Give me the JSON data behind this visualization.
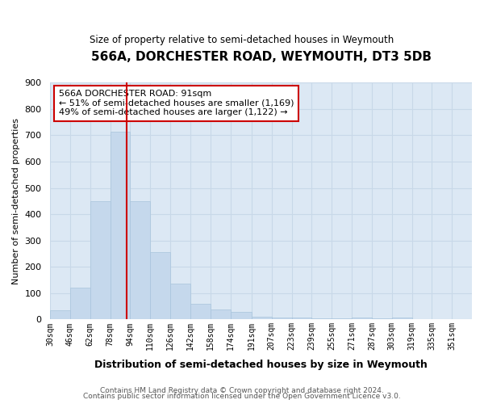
{
  "title": "566A, DORCHESTER ROAD, WEYMOUTH, DT3 5DB",
  "subtitle": "Size of property relative to semi-detached houses in Weymouth",
  "xlabel": "Distribution of semi-detached houses by size in Weymouth",
  "ylabel": "Number of semi-detached properties",
  "footer1": "Contains HM Land Registry data © Crown copyright and database right 2024.",
  "footer2": "Contains public sector information licensed under the Open Government Licence v3.0.",
  "bin_labels": [
    "30sqm",
    "46sqm",
    "62sqm",
    "78sqm",
    "94sqm",
    "110sqm",
    "126sqm",
    "142sqm",
    "158sqm",
    "174sqm",
    "191sqm",
    "207sqm",
    "223sqm",
    "239sqm",
    "255sqm",
    "271sqm",
    "287sqm",
    "303sqm",
    "319sqm",
    "335sqm",
    "351sqm"
  ],
  "bin_edges": [
    30,
    46,
    62,
    78,
    94,
    110,
    126,
    142,
    158,
    174,
    191,
    207,
    223,
    239,
    255,
    271,
    287,
    303,
    319,
    335,
    351,
    367
  ],
  "values": [
    35,
    120,
    450,
    715,
    450,
    255,
    135,
    60,
    37,
    30,
    10,
    8,
    8,
    5,
    5,
    8,
    5,
    6,
    0,
    0,
    0
  ],
  "bar_color": "#c5d8ec",
  "bar_edge_color": "#a8c4dc",
  "property_sqm": 91,
  "annotation_title": "566A DORCHESTER ROAD: 91sqm",
  "annotation_line1": "← 51% of semi-detached houses are smaller (1,169)",
  "annotation_line2": "49% of semi-detached houses are larger (1,122) →",
  "vline_color": "#cc0000",
  "annotation_box_color": "#ffffff",
  "annotation_box_edge": "#cc0000",
  "grid_color": "#c8d8e8",
  "plot_bg_color": "#dce8f4",
  "fig_bg_color": "#ffffff",
  "ylim": [
    0,
    900
  ],
  "yticks": [
    0,
    100,
    200,
    300,
    400,
    500,
    600,
    700,
    800,
    900
  ]
}
